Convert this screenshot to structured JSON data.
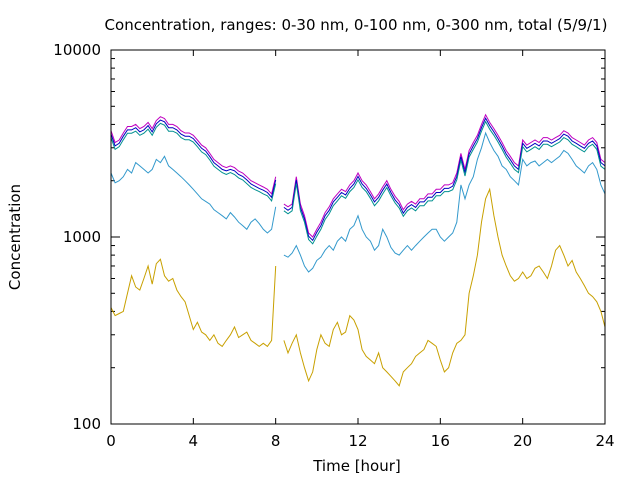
{
  "chart_data": {
    "type": "line",
    "title": "Concentration, ranges: 0-30 nm, 0-100 nm, 0-300 nm, total (5/9/1)",
    "xlabel": "Time [hour]",
    "ylabel": "Concentration",
    "xlim": [
      0,
      24
    ],
    "ylim": [
      100,
      10000
    ],
    "yscale": "log",
    "xticks": [
      "0",
      "4",
      "8",
      "12",
      "16",
      "20",
      "24"
    ],
    "yticks": [
      "100",
      "1000",
      "10000"
    ],
    "grid": false,
    "legend": "none",
    "series": [
      {
        "color": "#c000c0",
        "x": [
          0,
          0.2,
          0.4,
          0.6,
          0.8,
          1,
          1.2,
          1.4,
          1.6,
          1.8,
          2,
          2.2,
          2.4,
          2.6,
          2.8,
          3,
          3.2,
          3.4,
          3.6,
          3.8,
          4,
          4.2,
          4.4,
          4.6,
          4.8,
          5,
          5.2,
          5.4,
          5.6,
          5.8,
          6,
          6.2,
          6.4,
          6.6,
          6.8,
          7,
          7.2,
          7.4,
          7.6,
          7.8,
          8,
          null,
          8.4,
          8.6,
          8.8,
          9,
          9.2,
          9.4,
          9.6,
          9.8,
          10,
          10.2,
          10.4,
          10.6,
          10.8,
          11,
          11.2,
          11.4,
          11.6,
          11.8,
          12,
          12.2,
          12.4,
          12.6,
          12.8,
          13,
          13.2,
          13.4,
          13.6,
          13.8,
          14,
          14.2,
          14.4,
          14.6,
          14.8,
          15,
          15.2,
          15.4,
          15.6,
          15.8,
          16,
          16.2,
          16.4,
          16.6,
          16.8,
          17,
          17.2,
          17.4,
          17.6,
          17.8,
          18,
          18.2,
          18.4,
          18.6,
          18.8,
          19,
          19.2,
          19.4,
          19.6,
          19.8,
          20,
          20.2,
          20.4,
          20.6,
          20.8,
          21,
          21.2,
          21.4,
          21.6,
          21.8,
          22,
          22.2,
          22.4,
          22.6,
          22.8,
          23,
          23.2,
          23.4,
          23.6,
          23.8,
          24
        ],
        "values": [
          3700,
          3200,
          3300,
          3600,
          3900,
          3900,
          4000,
          3800,
          3900,
          4100,
          3800,
          4200,
          4400,
          4300,
          4000,
          4000,
          3900,
          3700,
          3600,
          3600,
          3500,
          3300,
          3100,
          3000,
          2800,
          2600,
          2500,
          2400,
          2350,
          2400,
          2350,
          2250,
          2200,
          2100,
          2000,
          1950,
          1900,
          1850,
          1800,
          1700,
          2100,
          null,
          1500,
          1450,
          1500,
          2100,
          1500,
          1300,
          1050,
          1000,
          1100,
          1200,
          1350,
          1450,
          1600,
          1700,
          1800,
          1750,
          1900,
          2000,
          2200,
          2000,
          1900,
          1750,
          1600,
          1700,
          1850,
          2000,
          1800,
          1650,
          1550,
          1400,
          1500,
          1550,
          1500,
          1600,
          1600,
          1700,
          1700,
          1800,
          1800,
          1900,
          1900,
          1950,
          2200,
          2800,
          2300,
          2900,
          3200,
          3500,
          4000,
          4500,
          4100,
          3800,
          3500,
          3200,
          2900,
          2700,
          2500,
          2400,
          3300,
          3100,
          3200,
          3300,
          3200,
          3400,
          3400,
          3300,
          3400,
          3500,
          3700,
          3600,
          3400,
          3300,
          3200,
          3100,
          3300,
          3400,
          3200,
          2600,
          2500
        ]
      },
      {
        "color": "#0000c0",
        "x": [
          0,
          0.2,
          0.4,
          0.6,
          0.8,
          1,
          1.2,
          1.4,
          1.6,
          1.8,
          2,
          2.2,
          2.4,
          2.6,
          2.8,
          3,
          3.2,
          3.4,
          3.6,
          3.8,
          4,
          4.2,
          4.4,
          4.6,
          4.8,
          5,
          5.2,
          5.4,
          5.6,
          5.8,
          6,
          6.2,
          6.4,
          6.6,
          6.8,
          7,
          7.2,
          7.4,
          7.6,
          7.8,
          8,
          null,
          8.4,
          8.6,
          8.8,
          9,
          9.2,
          9.4,
          9.6,
          9.8,
          10,
          10.2,
          10.4,
          10.6,
          10.8,
          11,
          11.2,
          11.4,
          11.6,
          11.8,
          12,
          12.2,
          12.4,
          12.6,
          12.8,
          13,
          13.2,
          13.4,
          13.6,
          13.8,
          14,
          14.2,
          14.4,
          14.6,
          14.8,
          15,
          15.2,
          15.4,
          15.6,
          15.8,
          16,
          16.2,
          16.4,
          16.6,
          16.8,
          17,
          17.2,
          17.4,
          17.6,
          17.8,
          18,
          18.2,
          18.4,
          18.6,
          18.8,
          19,
          19.2,
          19.4,
          19.6,
          19.8,
          20,
          20.2,
          20.4,
          20.6,
          20.8,
          21,
          21.2,
          21.4,
          21.6,
          21.8,
          22,
          22.2,
          22.4,
          22.6,
          22.8,
          23,
          23.2,
          23.4,
          23.6,
          23.8,
          24
        ],
        "values": [
          3550,
          3070,
          3170,
          3460,
          3740,
          3740,
          3840,
          3650,
          3740,
          3940,
          3650,
          4030,
          4220,
          4130,
          3840,
          3840,
          3740,
          3550,
          3460,
          3460,
          3360,
          3170,
          2980,
          2880,
          2690,
          2500,
          2400,
          2300,
          2260,
          2300,
          2260,
          2160,
          2110,
          2020,
          1920,
          1870,
          1820,
          1780,
          1730,
          1630,
          2020,
          null,
          1440,
          1390,
          1440,
          2020,
          1440,
          1250,
          1010,
          960,
          1060,
          1150,
          1300,
          1390,
          1540,
          1630,
          1730,
          1680,
          1820,
          1920,
          2110,
          1920,
          1820,
          1680,
          1540,
          1630,
          1780,
          1920,
          1730,
          1580,
          1490,
          1340,
          1440,
          1490,
          1440,
          1540,
          1540,
          1630,
          1630,
          1730,
          1730,
          1820,
          1820,
          1870,
          2110,
          2690,
          2210,
          2780,
          3070,
          3360,
          3840,
          4320,
          3940,
          3650,
          3360,
          3070,
          2780,
          2590,
          2400,
          2300,
          3170,
          2980,
          3070,
          3170,
          3070,
          3260,
          3260,
          3170,
          3260,
          3360,
          3550,
          3460,
          3260,
          3170,
          3070,
          2980,
          3170,
          3260,
          3070,
          2500,
          2400
        ]
      },
      {
        "color": "#009090",
        "x": [
          0,
          0.2,
          0.4,
          0.6,
          0.8,
          1,
          1.2,
          1.4,
          1.6,
          1.8,
          2,
          2.2,
          2.4,
          2.6,
          2.8,
          3,
          3.2,
          3.4,
          3.6,
          3.8,
          4,
          4.2,
          4.4,
          4.6,
          4.8,
          5,
          5.2,
          5.4,
          5.6,
          5.8,
          6,
          6.2,
          6.4,
          6.6,
          6.8,
          7,
          7.2,
          7.4,
          7.6,
          7.8,
          8,
          null,
          8.4,
          8.6,
          8.8,
          9,
          9.2,
          9.4,
          9.6,
          9.8,
          10,
          10.2,
          10.4,
          10.6,
          10.8,
          11,
          11.2,
          11.4,
          11.6,
          11.8,
          12,
          12.2,
          12.4,
          12.6,
          12.8,
          13,
          13.2,
          13.4,
          13.6,
          13.8,
          14,
          14.2,
          14.4,
          14.6,
          14.8,
          15,
          15.2,
          15.4,
          15.6,
          15.8,
          16,
          16.2,
          16.4,
          16.6,
          16.8,
          17,
          17.2,
          17.4,
          17.6,
          17.8,
          18,
          18.2,
          18.4,
          18.6,
          18.8,
          19,
          19.2,
          19.4,
          19.6,
          19.8,
          20,
          20.2,
          20.4,
          20.6,
          20.8,
          21,
          21.2,
          21.4,
          21.6,
          21.8,
          22,
          22.2,
          22.4,
          22.6,
          22.8,
          23,
          23.2,
          23.4,
          23.6,
          23.8,
          24
        ],
        "values": [
          3400,
          2940,
          3040,
          3310,
          3590,
          3590,
          3680,
          3500,
          3590,
          3770,
          3500,
          3860,
          4050,
          3960,
          3680,
          3680,
          3590,
          3400,
          3310,
          3310,
          3220,
          3040,
          2850,
          2760,
          2580,
          2390,
          2300,
          2210,
          2160,
          2210,
          2160,
          2070,
          2020,
          1930,
          1840,
          1790,
          1750,
          1700,
          1660,
          1560,
          1930,
          null,
          1380,
          1330,
          1380,
          1930,
          1380,
          1200,
          970,
          920,
          1010,
          1100,
          1240,
          1330,
          1470,
          1560,
          1660,
          1610,
          1750,
          1840,
          2020,
          1840,
          1750,
          1610,
          1470,
          1560,
          1700,
          1840,
          1660,
          1520,
          1430,
          1290,
          1380,
          1430,
          1380,
          1470,
          1470,
          1560,
          1560,
          1660,
          1660,
          1750,
          1750,
          1790,
          2020,
          2580,
          2120,
          2670,
          2940,
          3220,
          3680,
          4140,
          3770,
          3500,
          3220,
          2940,
          2670,
          2480,
          2300,
          2210,
          3040,
          2850,
          2940,
          3040,
          2940,
          3130,
          3130,
          3040,
          3130,
          3220,
          3400,
          3310,
          3130,
          3040,
          2940,
          2850,
          3040,
          3130,
          2940,
          2390,
          2300
        ]
      },
      {
        "color": "#3399cc",
        "x": [
          0,
          0.2,
          0.4,
          0.6,
          0.8,
          1,
          1.2,
          1.4,
          1.6,
          1.8,
          2,
          2.2,
          2.4,
          2.6,
          2.8,
          3,
          3.2,
          3.4,
          3.6,
          3.8,
          4,
          4.2,
          4.4,
          4.6,
          4.8,
          5,
          5.2,
          5.4,
          5.6,
          5.8,
          6,
          6.2,
          6.4,
          6.6,
          6.8,
          7,
          7.2,
          7.4,
          7.6,
          7.8,
          8,
          null,
          8.4,
          8.6,
          8.8,
          9,
          9.2,
          9.4,
          9.6,
          9.8,
          10,
          10.2,
          10.4,
          10.6,
          10.8,
          11,
          11.2,
          11.4,
          11.6,
          11.8,
          12,
          12.2,
          12.4,
          12.6,
          12.8,
          13,
          13.2,
          13.4,
          13.6,
          13.8,
          14,
          14.2,
          14.4,
          14.6,
          14.8,
          15,
          15.2,
          15.4,
          15.6,
          15.8,
          16,
          16.2,
          16.4,
          16.6,
          16.8,
          17,
          17.2,
          17.4,
          17.6,
          17.8,
          18,
          18.2,
          18.4,
          18.6,
          18.8,
          19,
          19.2,
          19.4,
          19.6,
          19.8,
          20,
          20.2,
          20.4,
          20.6,
          20.8,
          21,
          21.2,
          21.4,
          21.6,
          21.8,
          22,
          22.2,
          22.4,
          22.6,
          22.8,
          23,
          23.2,
          23.4,
          23.6,
          23.8,
          24
        ],
        "values": [
          2200,
          1950,
          2000,
          2100,
          2300,
          2200,
          2500,
          2400,
          2300,
          2200,
          2300,
          2600,
          2500,
          2700,
          2400,
          2300,
          2200,
          2100,
          2000,
          1900,
          1800,
          1700,
          1600,
          1550,
          1500,
          1400,
          1350,
          1300,
          1250,
          1350,
          1280,
          1200,
          1150,
          1100,
          1200,
          1250,
          1180,
          1100,
          1050,
          1100,
          1450,
          null,
          800,
          780,
          820,
          900,
          800,
          700,
          650,
          680,
          750,
          780,
          850,
          900,
          850,
          950,
          1000,
          950,
          1100,
          1150,
          1300,
          1100,
          1000,
          950,
          850,
          900,
          1100,
          1000,
          880,
          820,
          800,
          850,
          900,
          850,
          900,
          950,
          1000,
          1050,
          1100,
          1100,
          1000,
          950,
          1000,
          1050,
          1200,
          1900,
          1600,
          1900,
          2100,
          2600,
          3000,
          3600,
          3200,
          2900,
          2700,
          2400,
          2300,
          2100,
          2000,
          1900,
          2600,
          2400,
          2500,
          2550,
          2400,
          2500,
          2600,
          2500,
          2600,
          2700,
          2900,
          2800,
          2600,
          2400,
          2300,
          2200,
          2400,
          2500,
          2300,
          1900,
          1700
        ]
      },
      {
        "color": "#c8a000",
        "x": [
          0,
          0.2,
          0.4,
          0.6,
          0.8,
          1,
          1.2,
          1.4,
          1.6,
          1.8,
          2,
          2.2,
          2.4,
          2.6,
          2.8,
          3,
          3.2,
          3.4,
          3.6,
          3.8,
          4,
          4.2,
          4.4,
          4.6,
          4.8,
          5,
          5.2,
          5.4,
          5.6,
          5.8,
          6,
          6.2,
          6.4,
          6.6,
          6.8,
          7,
          7.2,
          7.4,
          7.6,
          7.8,
          8,
          null,
          8.4,
          8.6,
          8.8,
          9,
          9.2,
          9.4,
          9.6,
          9.8,
          10,
          10.2,
          10.4,
          10.6,
          10.8,
          11,
          11.2,
          11.4,
          11.6,
          11.8,
          12,
          12.2,
          12.4,
          12.6,
          12.8,
          13,
          13.2,
          13.4,
          13.6,
          13.8,
          14,
          14.2,
          14.4,
          14.6,
          14.8,
          15,
          15.2,
          15.4,
          15.6,
          15.8,
          16,
          16.2,
          16.4,
          16.6,
          16.8,
          17,
          17.2,
          17.4,
          17.6,
          17.8,
          18,
          18.2,
          18.4,
          18.6,
          18.8,
          19,
          19.2,
          19.4,
          19.6,
          19.8,
          20,
          20.2,
          20.4,
          20.6,
          20.8,
          21,
          21.2,
          21.4,
          21.6,
          21.8,
          22,
          22.2,
          22.4,
          22.6,
          22.8,
          23,
          23.2,
          23.4,
          23.6,
          23.8,
          24
        ],
        "values": [
          420,
          380,
          390,
          400,
          500,
          620,
          540,
          520,
          600,
          700,
          560,
          720,
          760,
          620,
          580,
          600,
          520,
          480,
          450,
          380,
          320,
          350,
          310,
          300,
          280,
          300,
          270,
          260,
          280,
          300,
          330,
          290,
          300,
          310,
          280,
          270,
          260,
          270,
          260,
          280,
          700,
          null,
          280,
          240,
          270,
          300,
          240,
          200,
          170,
          190,
          250,
          300,
          270,
          260,
          320,
          350,
          300,
          310,
          380,
          360,
          320,
          250,
          230,
          220,
          210,
          240,
          200,
          190,
          180,
          170,
          160,
          190,
          200,
          210,
          230,
          240,
          250,
          280,
          270,
          260,
          220,
          190,
          200,
          240,
          270,
          280,
          300,
          500,
          620,
          800,
          1200,
          1600,
          1800,
          1300,
          1000,
          800,
          700,
          620,
          580,
          600,
          650,
          600,
          620,
          680,
          700,
          650,
          600,
          700,
          850,
          900,
          800,
          700,
          750,
          650,
          600,
          550,
          500,
          480,
          450,
          400,
          330
        ]
      }
    ]
  }
}
